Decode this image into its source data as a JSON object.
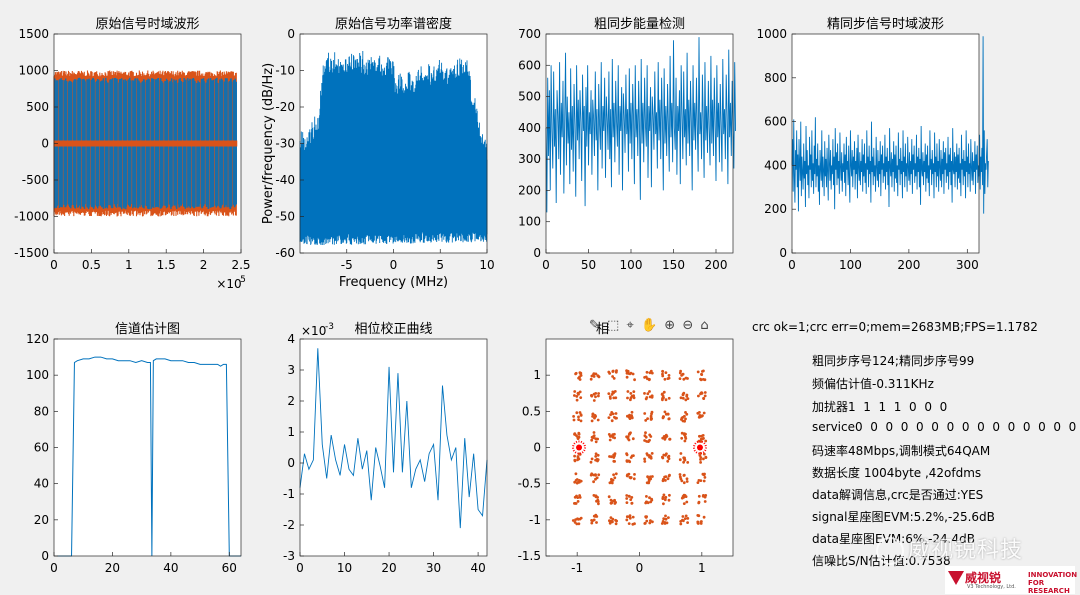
{
  "chart_data": [
    {
      "id": "ax1",
      "type": "line",
      "title": "原始信号时域波形",
      "xlim": [
        0,
        250000
      ],
      "ylim": [
        -1500,
        1500
      ],
      "xticks": [
        0,
        0.5,
        1,
        1.5,
        2,
        2.5
      ],
      "xticklabels": [
        "0",
        "0.5",
        "1",
        "1.5",
        "2",
        "2.5"
      ],
      "yticks": [
        -1500,
        -1000,
        -500,
        0,
        500,
        1000,
        1500
      ],
      "yticklabels": [
        "-1500",
        "-1000",
        "-500",
        "0",
        "500",
        "1000",
        "1500"
      ],
      "exponent_label": "×10",
      "exponent_power": "5",
      "series": [
        {
          "name": "orange",
          "color": "#d95319",
          "amplitude": 1000,
          "x_end": 245000
        },
        {
          "name": "blue",
          "color": "#0072bd",
          "amplitude": 900,
          "x_end": 245000
        }
      ],
      "num_bursts": 40
    },
    {
      "id": "ax2",
      "type": "area",
      "title": "原始信号功率谱密度",
      "xlabel": "Frequency (MHz)",
      "ylabel": "Power/frequency (dB/Hz)",
      "xlim": [
        -10,
        10
      ],
      "ylim": [
        -60,
        0
      ],
      "xticks": [
        -5,
        0,
        5,
        10
      ],
      "xticklabels": [
        "-5",
        "0",
        "5",
        "10"
      ],
      "yticks": [
        -60,
        -50,
        -40,
        -30,
        -20,
        -10,
        0
      ],
      "yticklabels": [
        "-60",
        "-50",
        "-40",
        "-30",
        "-20",
        "-10",
        "0"
      ],
      "upper_profile": {
        "x": [
          -10,
          -9.5,
          -8,
          -7.5,
          -7,
          0,
          0.2,
          7.5,
          8,
          9.5,
          10
        ],
        "y": [
          -26,
          -29,
          -24,
          -8,
          -7,
          -8,
          -13,
          -8,
          -10,
          -29,
          -30
        ]
      },
      "lower_profile": {
        "x": [
          -10,
          10
        ],
        "y": [
          -55,
          -54
        ]
      },
      "color": "#0072bd"
    },
    {
      "id": "ax3",
      "type": "line",
      "title": "粗同步能量检测",
      "xlim": [
        0,
        220
      ],
      "ylim": [
        0,
        700
      ],
      "xticks": [
        0,
        50,
        100,
        150,
        200
      ],
      "xticklabels": [
        "0",
        "50",
        "100",
        "150",
        "200"
      ],
      "yticks": [
        0,
        100,
        200,
        300,
        400,
        500,
        600,
        700
      ],
      "yticklabels": [
        "0",
        "100",
        "200",
        "300",
        "400",
        "500",
        "600",
        "700"
      ],
      "values": [
        400,
        130,
        560,
        310,
        520,
        200,
        600,
        390,
        270,
        580,
        340,
        460,
        160,
        520,
        440,
        300,
        610,
        250,
        480,
        370,
        550,
        190,
        430,
        640,
        280,
        500,
        350,
        450,
        220,
        590,
        330,
        470,
        260,
        540,
        410,
        180,
        600,
        360,
        490,
        300,
        520,
        420,
        230,
        570,
        390,
        470,
        150,
        530,
        340,
        600,
        280,
        450,
        380,
        520,
        250,
        490,
        430,
        310,
        580,
        360,
        460,
        200,
        540,
        410,
        330,
        610,
        270,
        470,
        390,
        560,
        240,
        500,
        430,
        330,
        580,
        300,
        460,
        210,
        620,
        370,
        480,
        290,
        550,
        420,
        340,
        600,
        250,
        470,
        390,
        530,
        200,
        510,
        440,
        320,
        570,
        380,
        460,
        260,
        590,
        350,
        480,
        300,
        540,
        430,
        220,
        600,
        370,
        460,
        310,
        550,
        400,
        170,
        620,
        350,
        480,
        290,
        560,
        410,
        340,
        600,
        240,
        470,
        390,
        530,
        210,
        500,
        440,
        330,
        580,
        380,
        450,
        270,
        610,
        360,
        490,
        300,
        560,
        420,
        200,
        590,
        350,
        470,
        310,
        540,
        410,
        260,
        630,
        370,
        480,
        290,
        680,
        400,
        330,
        560,
        250,
        470,
        390,
        520,
        220,
        600,
        440,
        300,
        580,
        370,
        460,
        280,
        640,
        350,
        490,
        310,
        550,
        420,
        200,
        600,
        360,
        480,
        330,
        560,
        410,
        260,
        690,
        380,
        450,
        300,
        570,
        430,
        240,
        610,
        360,
        470,
        320,
        550,
        400,
        280,
        630,
        350,
        490,
        310,
        560,
        420,
        230,
        600,
        370,
        480,
        290,
        540,
        410,
        260,
        620,
        380,
        460,
        300,
        570,
        440,
        220,
        650,
        370,
        480,
        310,
        550,
        400,
        270,
        610,
        390
      ],
      "color": "#0072bd"
    },
    {
      "id": "ax4",
      "type": "line",
      "title": "精同步信号时域波形",
      "xlim": [
        0,
        320
      ],
      "ylim": [
        0,
        1000
      ],
      "xticks": [
        0,
        100,
        200,
        300
      ],
      "xticklabels": [
        "0",
        "100",
        "200",
        "300"
      ],
      "yticks": [
        0,
        200,
        400,
        600,
        800,
        1000
      ],
      "yticklabels": [
        "0",
        "200",
        "400",
        "600",
        "800",
        "1000"
      ],
      "values": [
        400,
        520,
        280,
        610,
        350,
        230,
        470,
        380,
        560,
        300,
        450,
        190,
        520,
        410,
        330,
        600,
        260,
        440,
        370,
        290,
        500,
        340,
        420,
        210,
        580,
        360,
        470,
        310,
        400,
        250,
        530,
        380,
        450,
        300,
        560,
        330,
        410,
        270,
        490,
        360,
        620,
        300,
        430,
        350,
        500,
        280,
        400,
        220,
        470,
        390,
        330,
        560,
        300,
        440,
        380,
        260,
        510,
        350,
        430,
        300,
        480,
        370,
        240,
        540,
        410,
        330,
        470,
        290,
        400,
        360,
        520,
        310,
        440,
        200,
        570,
        380,
        460,
        310,
        500,
        340,
        420,
        270,
        550,
        390,
        330,
        460,
        280,
        410,
        370,
        500,
        320,
        450,
        260,
        530,
        380,
        420,
        310,
        490,
        340,
        230,
        560,
        400,
        350,
        470,
        300,
        440,
        380,
        510,
        290,
        420,
        360,
        480,
        250,
        540,
        390,
        330,
        460,
        310,
        420,
        370,
        520,
        280,
        450,
        350,
        500,
        320,
        410,
        270,
        560,
        380,
        440,
        300,
        490,
        360,
        420,
        230,
        600,
        370,
        440,
        310,
        480,
        350,
        400,
        280,
        530,
        390,
        330,
        470,
        300,
        420,
        360,
        510,
        260,
        450,
        380,
        490,
        320,
        410,
        350,
        540,
        290,
        440,
        370,
        480,
        310,
        420,
        210,
        570,
        390,
        350,
        460,
        300,
        430,
        370,
        510,
        280,
        450,
        340,
        490,
        320,
        400,
        260,
        550,
        380,
        430,
        310,
        480,
        360,
        420,
        250,
        560,
        370,
        440,
        300,
        500,
        350,
        410,
        280,
        530,
        390,
        330,
        460,
        310,
        420,
        360,
        520,
        270,
        450,
        380,
        490,
        320,
        410,
        350,
        540,
        290,
        440,
        370,
        480,
        300,
        430,
        220,
        580,
        380,
        350,
        460,
        310,
        420,
        370,
        500,
        280,
        450,
        340,
        490,
        320,
        400,
        260,
        560,
        380,
        430,
        310,
        470,
        360,
        410,
        250,
        550,
        370,
        440,
        300,
        500,
        350,
        420,
        280,
        520,
        390,
        330,
        470,
        300,
        430,
        360,
        510,
        270,
        460,
        380,
        480,
        320,
        410,
        350,
        530,
        290,
        450,
        370,
        480,
        310,
        420,
        230,
        570,
        380,
        360,
        460,
        300,
        440,
        370,
        500,
        290,
        450,
        340,
        480,
        320,
        410,
        260,
        540,
        380,
        430,
        310,
        470,
        350,
        420,
        250,
        560,
        370,
        440,
        300,
        500,
        360,
        410,
        280,
        520,
        390,
        330,
        460,
        310,
        420,
        370,
        510,
        270,
        450,
        380,
        490,
        320,
        400,
        350,
        540,
        290,
        440,
        370,
        480,
        310,
        990,
        180,
        560,
        270,
        410,
        380,
        450,
        520,
        300,
        420
      ],
      "color": "#0072bd"
    },
    {
      "id": "ax5",
      "type": "line",
      "title": "信道估计图",
      "xlim": [
        0,
        64
      ],
      "ylim": [
        0,
        120
      ],
      "xticks": [
        0,
        20,
        40,
        60
      ],
      "xticklabels": [
        "0",
        "20",
        "40",
        "60"
      ],
      "yticks": [
        0,
        20,
        40,
        60,
        80,
        100,
        120
      ],
      "yticklabels": [
        "0",
        "20",
        "40",
        "60",
        "80",
        "100",
        "120"
      ],
      "x": [
        1,
        2,
        3,
        4,
        5,
        6,
        7,
        8,
        10,
        12,
        14,
        16,
        18,
        20,
        22,
        24,
        26,
        28,
        30,
        32,
        33,
        33.5,
        34,
        35,
        36,
        38,
        40,
        42,
        44,
        46,
        48,
        50,
        52,
        54,
        56,
        57,
        58,
        59,
        60,
        61,
        62,
        63,
        64
      ],
      "y": [
        0,
        0,
        0,
        0,
        0,
        0,
        107,
        108,
        109,
        109,
        110,
        110,
        109,
        109,
        108,
        108,
        108,
        107,
        108,
        107,
        107,
        0,
        108,
        109,
        109,
        109,
        108,
        108,
        108,
        107,
        107,
        106,
        106,
        106,
        106,
        105,
        106,
        106,
        0,
        0,
        0,
        0,
        0
      ],
      "color": "#0072bd"
    },
    {
      "id": "ax6",
      "type": "line",
      "title": "相位校正曲线",
      "xlim": [
        0,
        42
      ],
      "ylim": [
        -0.003,
        0.004
      ],
      "xticks": [
        0,
        10,
        20,
        30,
        40
      ],
      "xticklabels": [
        "0",
        "10",
        "20",
        "30",
        "40"
      ],
      "yticks": [
        -0.003,
        -0.002,
        -0.001,
        0,
        0.001,
        0.002,
        0.003,
        0.004
      ],
      "yticklabels": [
        "-3",
        "-2",
        "-1",
        "0",
        "1",
        "2",
        "3",
        "4"
      ],
      "exponent_label": "×10",
      "exponent_power": "-3",
      "values": [
        -0.0008,
        0.0003,
        -0.0002,
        0.0001,
        0.0037,
        0.0006,
        -0.0005,
        0.0009,
        0.0001,
        -0.0004,
        0.0006,
        -0.0002,
        -0.0004,
        0.0008,
        -0.0002,
        0.0004,
        -0.0012,
        0.0005,
        -0.0001,
        -0.0008,
        0.0031,
        -0.0003,
        0.0029,
        -0.0003,
        0.002,
        -0.0008,
        -0.0002,
        0.0001,
        -0.0006,
        0.0003,
        0.0006,
        -0.0012,
        0.0025,
        0.0009,
        0.0001,
        0.0005,
        -0.0021,
        0.0008,
        -0.0011,
        0.0003,
        -0.0015,
        -0.0017,
        0.0001
      ],
      "color": "#0072bd"
    },
    {
      "id": "ax7",
      "type": "scatter",
      "title": "相",
      "xlim": [
        -1.5,
        1.5
      ],
      "ylim": [
        -1.5,
        1.5
      ],
      "xticks": [
        -1,
        0,
        1
      ],
      "xticklabels": [
        "-1",
        "0",
        "1"
      ],
      "yticks": [
        -1.5,
        -1,
        -0.5,
        0,
        0.5,
        1
      ],
      "yticklabels": [
        "-1.5",
        "-1",
        "-0.5",
        "0",
        "0.5",
        "1"
      ],
      "grid_levels": [
        -1,
        -0.714,
        -0.428,
        -0.143,
        0.143,
        0.428,
        0.714,
        1
      ],
      "pilot_points": [
        [
          -0.97,
          0
        ],
        [
          0.97,
          0
        ]
      ],
      "color": "#d95319",
      "pilot_color": "#ff0000"
    }
  ],
  "toolbar": {
    "tools": [
      "✎",
      "⬚",
      "⌖",
      "✋",
      "⊕",
      "⊖",
      "⌂"
    ]
  },
  "status": {
    "line": "crc ok=1;crc err=0;mem=2683MB;FPS=1.1782"
  },
  "params": [
    "粗同步序号124;精同步序号99",
    "频偏估计值-0.311KHz",
    "加扰器1  1  1  1  0  0  0",
    "service0  0  0  0  0  0  0  0  0  0  0  0  0  0  0  0",
    "码速率48Mbps,调制模式64QAM",
    "数据长度 1004byte ,42ofdms",
    "data解调信息,crc是否通过:YES",
    "signal星座图EVM:5.2%,-25.6dB",
    "data星座图EVM:6%,-24.4dB",
    "信噪比S/N估计值:0.7538"
  ],
  "watermark": {
    "text": "威视锐科技"
  },
  "logo": {
    "brand": "威视锐",
    "sub": "V3 Technology, Ltd.",
    "right1": "INNOVATION",
    "right2": "FOR RESEARCH"
  }
}
